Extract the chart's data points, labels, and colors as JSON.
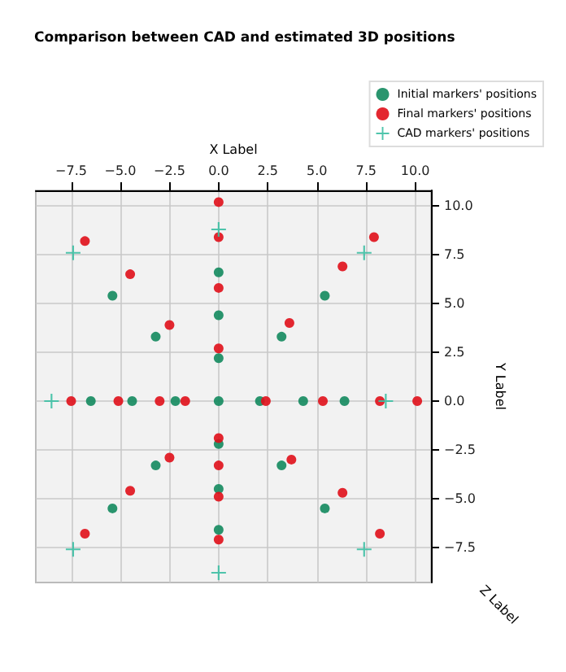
{
  "chart_data": {
    "type": "scatter",
    "title": "Comparison between CAD and estimated 3D positions",
    "xlabel": "X Label",
    "ylabel": "Y Label",
    "annotations": [
      "Z Label"
    ],
    "xlim": [
      -9.3,
      10.8
    ],
    "ylim": [
      -9.3,
      10.8
    ],
    "xticks": [
      {
        "value": -7.5,
        "label": "−7.5"
      },
      {
        "value": -5,
        "label": "−5.0"
      },
      {
        "value": -2.5,
        "label": "−2.5"
      },
      {
        "value": 0,
        "label": "0.0"
      },
      {
        "value": 2.5,
        "label": "2.5"
      },
      {
        "value": 5,
        "label": "5.0"
      },
      {
        "value": 7.5,
        "label": "7.5"
      },
      {
        "value": 10,
        "label": "10.0"
      }
    ],
    "yticks": [
      {
        "value": -7.5,
        "label": "−7.5"
      },
      {
        "value": -5,
        "label": "−5.0"
      },
      {
        "value": -2.5,
        "label": "−2.5"
      },
      {
        "value": 0,
        "label": "0.0"
      },
      {
        "value": 2.5,
        "label": "2.5"
      },
      {
        "value": 5,
        "label": "5.0"
      },
      {
        "value": 7.5,
        "label": "7.5"
      },
      {
        "value": 10,
        "label": "10.0"
      }
    ],
    "grid": true,
    "legend": "top right",
    "marker": "circle",
    "series": [
      {
        "name": "Initial markers' positions",
        "color": "#138a5e",
        "x": [
          0,
          0,
          0,
          -5.4,
          -3.2,
          3.2,
          5.4,
          -6.5,
          -4.4,
          -2.2,
          0,
          2.1,
          4.3,
          6.4,
          0,
          0,
          0,
          -3.2,
          3.2,
          -5.4,
          5.4
        ],
        "values": [
          6.6,
          4.4,
          2.2,
          5.4,
          3.3,
          3.3,
          5.4,
          0,
          0,
          0,
          0,
          0,
          0,
          0,
          -2.2,
          -4.5,
          -6.6,
          -3.3,
          -3.3,
          -5.5,
          -5.5
        ]
      },
      {
        "name": "Final markers' positions",
        "color": "#e0101a",
        "x": [
          0,
          0,
          0,
          0,
          -6.8,
          -4.5,
          -2.5,
          3.6,
          6.3,
          7.9,
          -7.5,
          -5.1,
          -3.0,
          -1.7,
          2.4,
          5.3,
          8.2,
          10.1,
          0,
          0,
          0,
          0,
          -2.5,
          3.7,
          -4.5,
          6.3,
          -6.8,
          8.2
        ],
        "values": [
          10.2,
          8.4,
          5.8,
          2.7,
          8.2,
          6.5,
          3.9,
          4.0,
          6.9,
          8.4,
          0,
          0,
          0,
          0,
          0,
          0,
          0,
          0,
          -1.9,
          -3.3,
          -4.9,
          -7.1,
          -2.9,
          -3.0,
          -4.6,
          -4.7,
          -6.8,
          -6.8
        ]
      },
      {
        "name": "CAD markers' positions",
        "color": "#3cbfa3",
        "marker": "cross",
        "x": [
          0,
          -7.4,
          7.4,
          -8.5,
          8.5,
          -7.4,
          7.4,
          0
        ],
        "values": [
          8.8,
          7.6,
          7.6,
          0,
          0,
          -7.6,
          -7.6,
          -8.8
        ]
      }
    ]
  }
}
